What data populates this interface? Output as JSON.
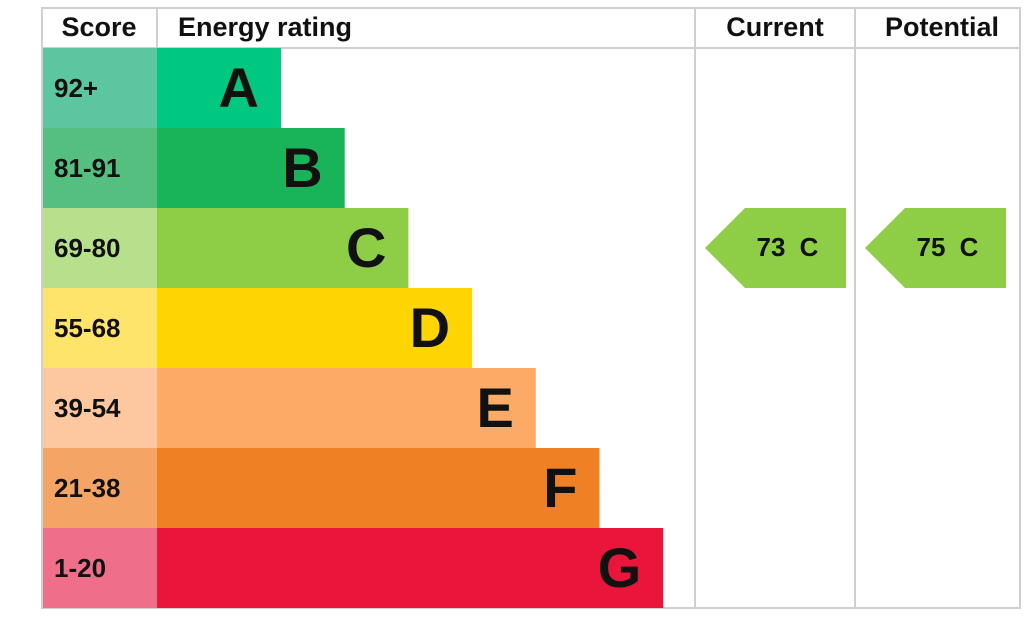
{
  "header": {
    "score": "Score",
    "rating": "Energy rating",
    "current": "Current",
    "potential": "Potential"
  },
  "bands": [
    {
      "score": "92+",
      "rating": "A",
      "color": "#00c781",
      "score_color": "#5cc6a0"
    },
    {
      "score": "81-91",
      "rating": "B",
      "color": "#19b459",
      "score_color": "#55bf7f"
    },
    {
      "score": "69-80",
      "rating": "C",
      "color": "#8dce46",
      "score_color": "#b6e08c"
    },
    {
      "score": "55-68",
      "rating": "D",
      "color": "#ffd500",
      "score_color": "#ffe46c"
    },
    {
      "score": "39-54",
      "rating": "E",
      "color": "#fcaa65",
      "score_color": "#fdc8a0"
    },
    {
      "score": "21-38",
      "rating": "F",
      "color": "#ef8023",
      "score_color": "#f4a566"
    },
    {
      "score": "1-20",
      "rating": "G",
      "color": "#e9153b",
      "score_color": "#ef6f8a"
    }
  ],
  "current": {
    "score": 73,
    "rating": "C"
  },
  "potential": {
    "score": 75,
    "rating": "C"
  }
}
